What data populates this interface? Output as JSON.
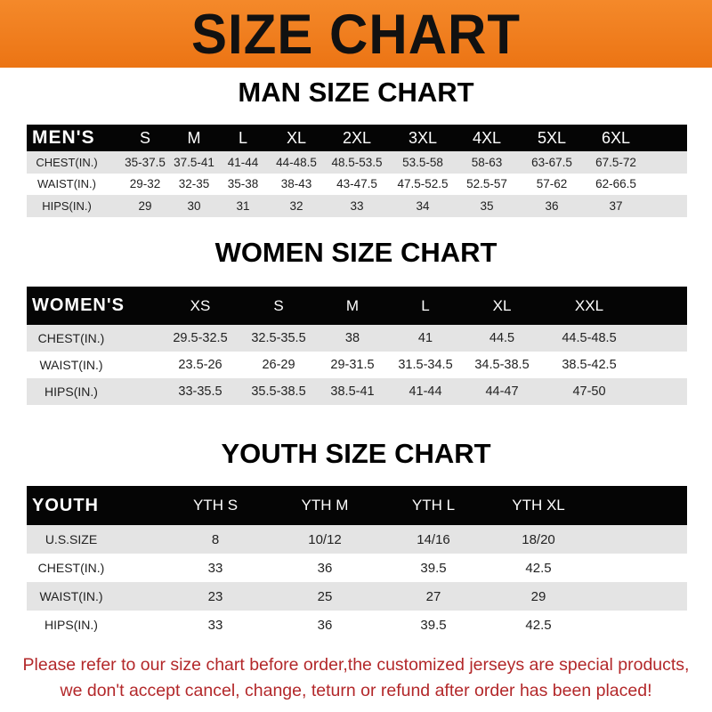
{
  "title": "SIZE CHART",
  "men": {
    "heading": "MAN SIZE CHART",
    "header": [
      "MEN'S",
      "S",
      "M",
      "L",
      "XL",
      "2XL",
      "3XL",
      "4XL",
      "5XL",
      "6XL"
    ],
    "rows": [
      [
        "CHEST(IN.)",
        "35-37.5",
        "37.5-41",
        "41-44",
        "44-48.5",
        "48.5-53.5",
        "53.5-58",
        "58-63",
        "63-67.5",
        "67.5-72"
      ],
      [
        "WAIST(IN.)",
        "29-32",
        "32-35",
        "35-38",
        "38-43",
        "43-47.5",
        "47.5-52.5",
        "52.5-57",
        "57-62",
        "62-66.5"
      ],
      [
        "HIPS(IN.)",
        "29",
        "30",
        "31",
        "32",
        "33",
        "34",
        "35",
        "36",
        "37"
      ]
    ]
  },
  "women": {
    "heading": "WOMEN SIZE CHART",
    "header": [
      "WOMEN'S",
      "XS",
      "S",
      "M",
      "L",
      "XL",
      "XXL"
    ],
    "rows": [
      [
        "CHEST(IN.)",
        "29.5-32.5",
        "32.5-35.5",
        "38",
        "41",
        "44.5",
        "44.5-48.5"
      ],
      [
        "WAIST(IN.)",
        "23.5-26",
        "26-29",
        "29-31.5",
        "31.5-34.5",
        "34.5-38.5",
        "38.5-42.5"
      ],
      [
        "HIPS(IN.)",
        "33-35.5",
        "35.5-38.5",
        "38.5-41",
        "41-44",
        "44-47",
        "47-50"
      ]
    ]
  },
  "youth": {
    "heading": "YOUTH SIZE CHART",
    "header": [
      "YOUTH",
      "YTH S",
      "YTH M",
      "YTH L",
      "YTH XL"
    ],
    "rows": [
      [
        "U.S.SIZE",
        "8",
        "10/12",
        "14/16",
        "18/20"
      ],
      [
        "CHEST(IN.)",
        "33",
        "36",
        "39.5",
        "42.5"
      ],
      [
        "WAIST(IN.)",
        "23",
        "25",
        "27",
        "29"
      ],
      [
        "HIPS(IN.)",
        "33",
        "36",
        "39.5",
        "42.5"
      ]
    ]
  },
  "notice": {
    "line1": "Please refer to our size chart before order,the customized jerseys are special products,",
    "line2": "we don't accept cancel, change, teturn or refund after order has been placed!"
  },
  "colors": {
    "banner": "#ec7414",
    "header_row": "#050505",
    "stripe": "#e4e4e4",
    "notice": "#b3282a"
  }
}
